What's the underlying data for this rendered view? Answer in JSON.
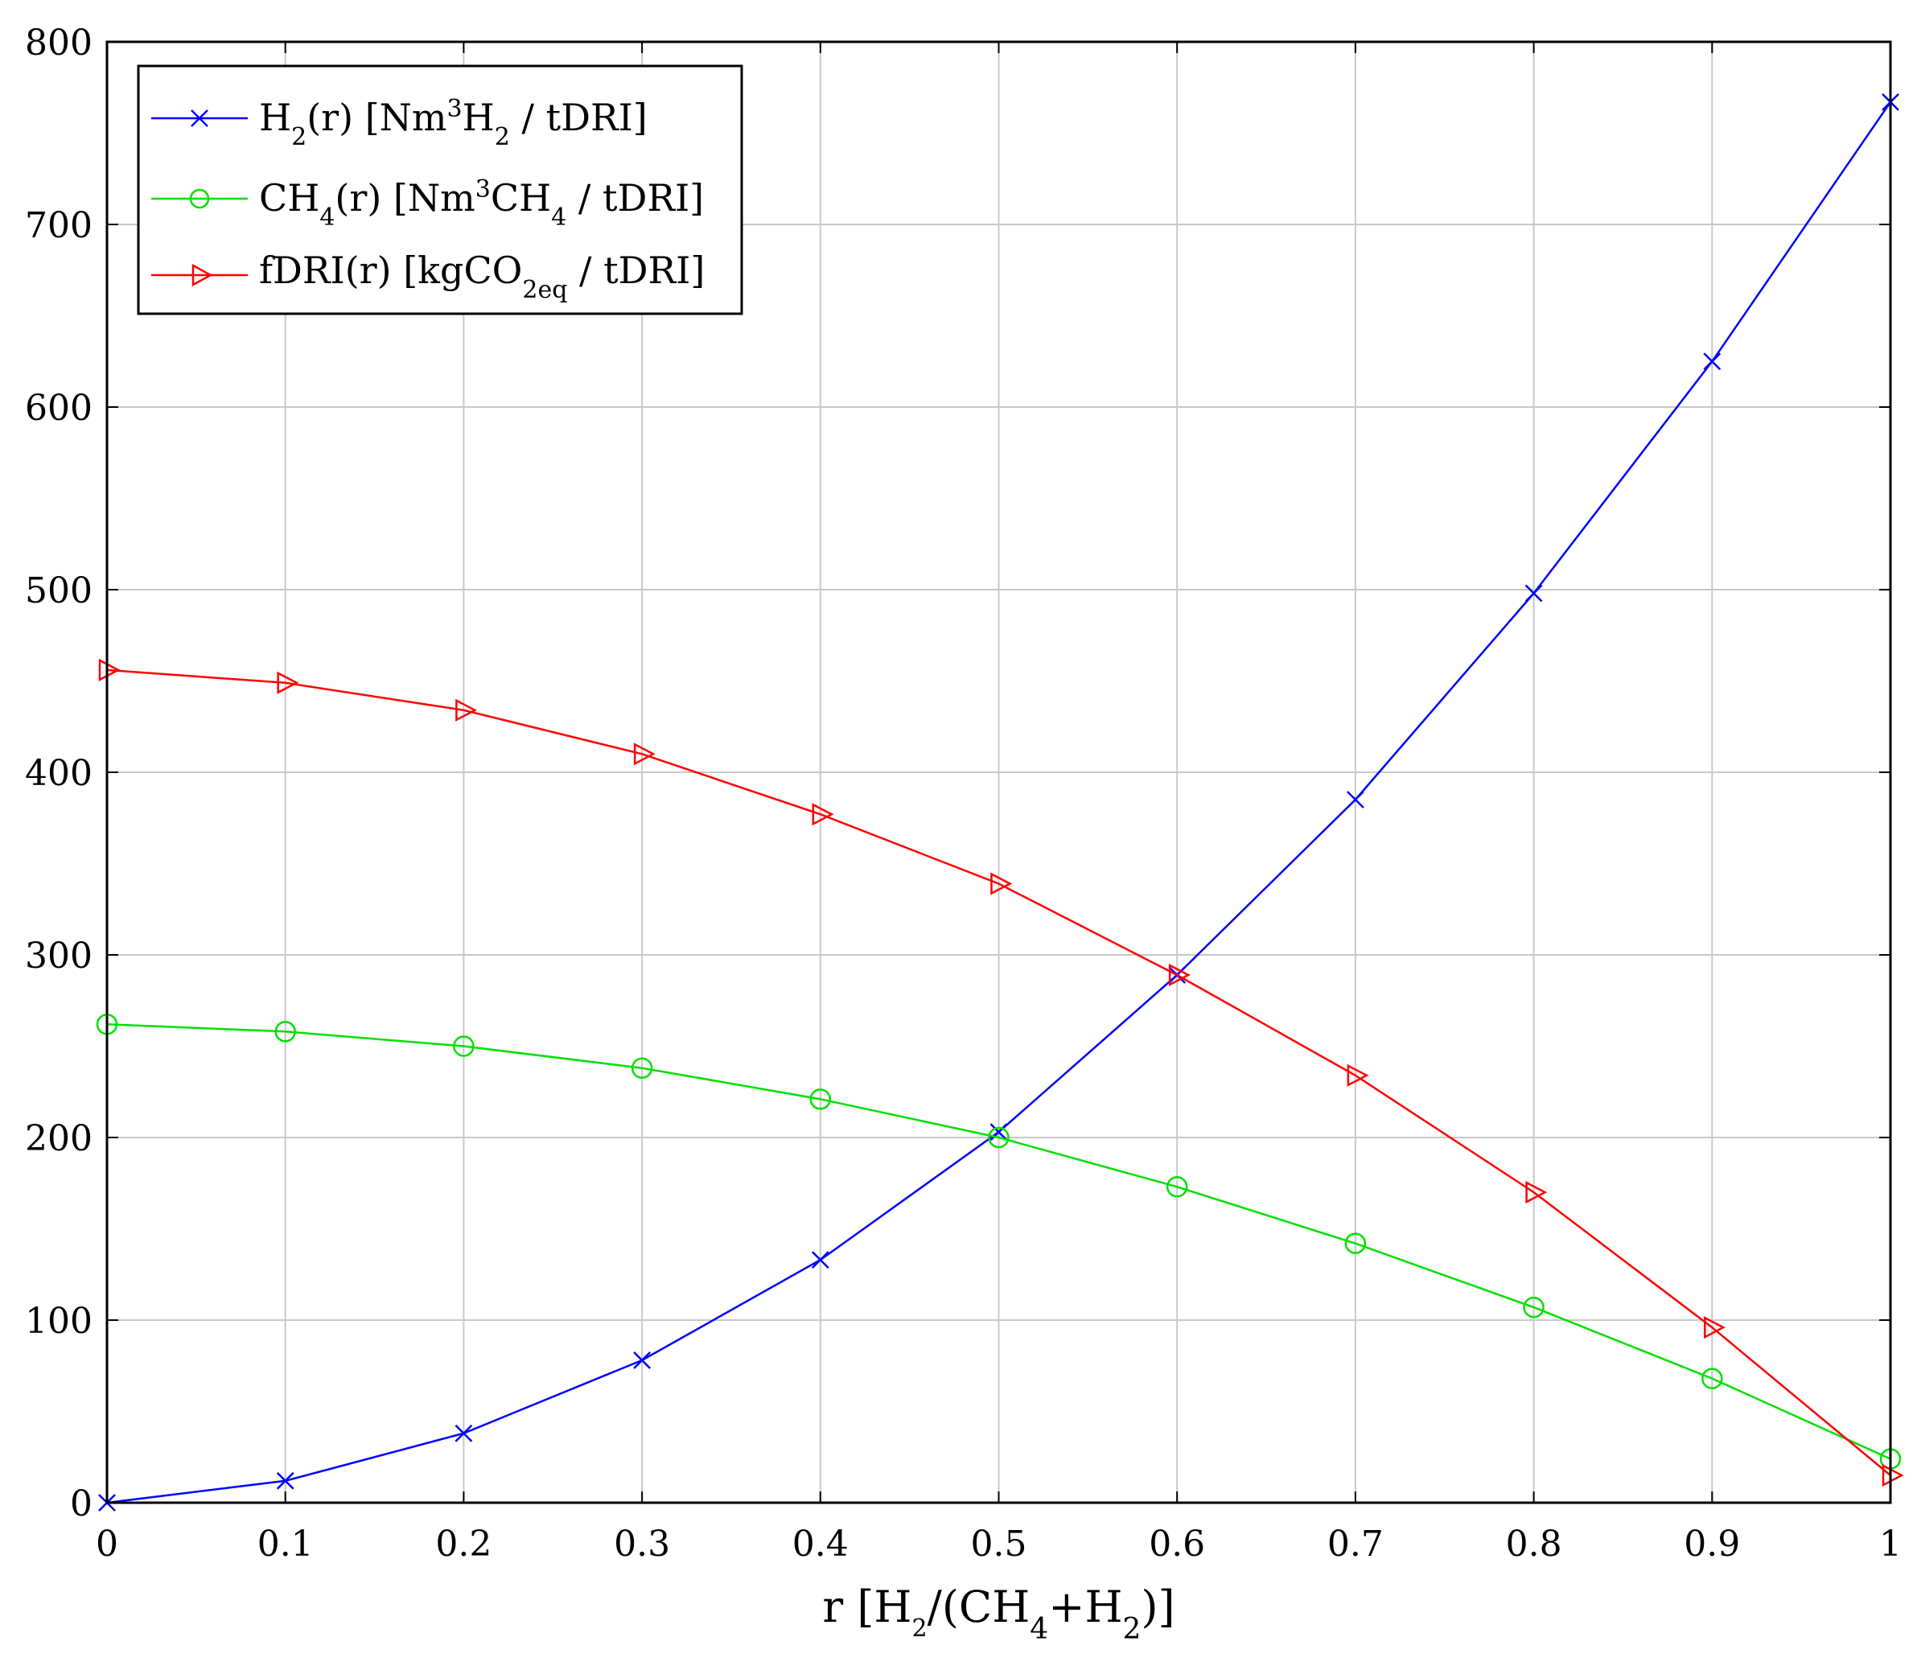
{
  "chart_data": {
    "type": "line",
    "title": "",
    "xlabel": {
      "main": "r [H",
      "s1": "2",
      "mid": "/(CH",
      "s2": "4",
      "plus": "+H",
      "s3": "2",
      "end": ")]"
    },
    "ylabel": "",
    "xlim": [
      0,
      1
    ],
    "ylim": [
      0,
      800
    ],
    "grid": true,
    "legend_position": "top-left",
    "x": [
      0,
      0.1,
      0.2,
      0.3,
      0.4,
      0.5,
      0.6,
      0.7,
      0.8,
      0.9,
      1
    ],
    "x_tick_labels": [
      "0",
      "0.1",
      "0.2",
      "0.3",
      "0.4",
      "0.5",
      "0.6",
      "0.7",
      "0.8",
      "0.9",
      "1"
    ],
    "y_ticks": [
      0,
      100,
      200,
      300,
      400,
      500,
      600,
      700,
      800
    ],
    "y_tick_labels": [
      "0",
      "100",
      "200",
      "300",
      "400",
      "500",
      "600",
      "700",
      "800"
    ],
    "series": [
      {
        "key": "h2",
        "color": "#0000ff",
        "marker": "x",
        "values": [
          0,
          12,
          38,
          78,
          133,
          203,
          289,
          385,
          498,
          625,
          767
        ],
        "legend": {
          "a": "H",
          "a_sub": "2",
          "b": "(r) [Nm",
          "b_sup": "3",
          "c": "H",
          "c_sub": "2",
          "d": " / tDRI]"
        }
      },
      {
        "key": "ch4",
        "color": "#00e000",
        "marker": "circle",
        "values": [
          262,
          258,
          250,
          238,
          221,
          200,
          173,
          142,
          107,
          68,
          24
        ],
        "legend": {
          "a": "CH",
          "a_sub": "4",
          "b": "(r) [Nm",
          "b_sup": "3",
          "c": "CH",
          "c_sub": "4",
          "d": " / tDRI]"
        }
      },
      {
        "key": "fdri",
        "color": "#ff0000",
        "marker": "triangle-right",
        "values": [
          456,
          449,
          434,
          410,
          377,
          339,
          289,
          234,
          170,
          96,
          15
        ],
        "legend": {
          "a": "fDRI(r) [kgCO",
          "a_sub": "2eq",
          "d": " / tDRI]"
        }
      }
    ]
  }
}
